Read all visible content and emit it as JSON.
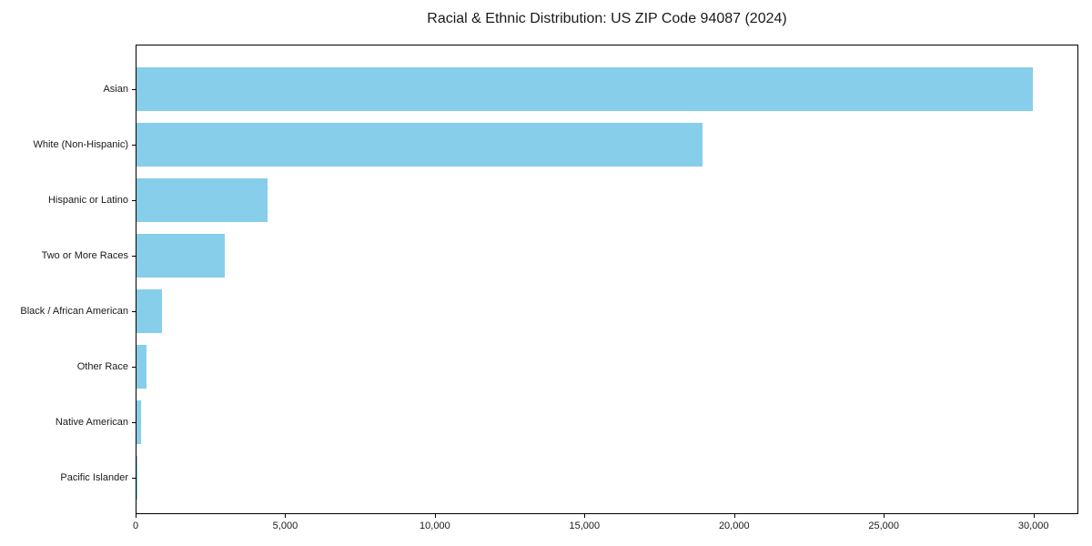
{
  "chart_data": {
    "type": "bar",
    "orientation": "horizontal",
    "title": "Racial & Ethnic Distribution: US ZIP Code 94087 (2024)",
    "categories": [
      "Asian",
      "White (Non-Hispanic)",
      "Hispanic or Latino",
      "Two or More Races",
      "Black / African American",
      "Other Race",
      "Native American",
      "Pacific Islander"
    ],
    "values": [
      30000,
      18950,
      4400,
      2950,
      850,
      350,
      140,
      30
    ],
    "bar_color": "#87CEEB",
    "xlabel": "",
    "ylabel": "",
    "xlim": [
      0,
      31500
    ],
    "xticks": [
      0,
      5000,
      10000,
      15000,
      20000,
      25000,
      30000
    ],
    "xtick_labels": [
      "0",
      "5,000",
      "10,000",
      "15,000",
      "20,000",
      "25,000",
      "30,000"
    ],
    "grid": false,
    "legend": false
  }
}
